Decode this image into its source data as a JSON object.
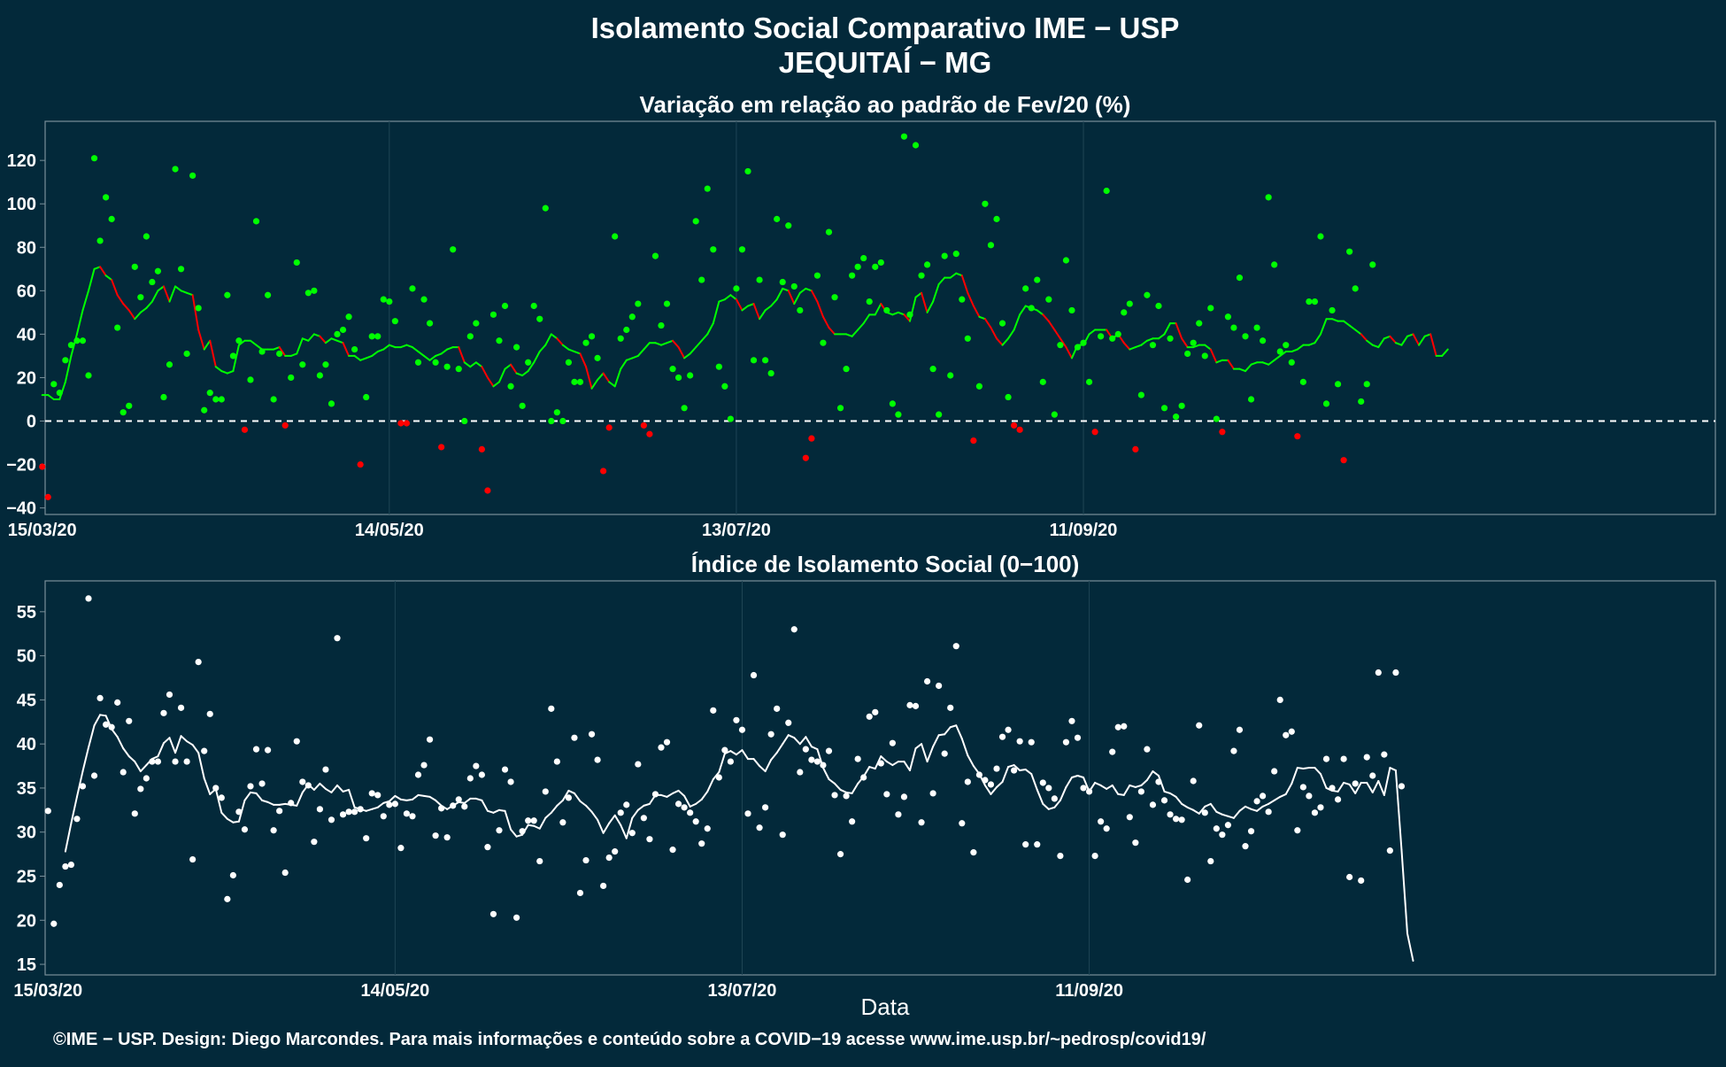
{
  "header": {
    "title": "Isolamento Social Comparativo IME − USP",
    "subtitle": "JEQUITAÍ − MG"
  },
  "footer": {
    "credit": "©IME − USP. Design: Diego Marcondes. Para mais informações e conteúdo sobre a COVID−19 acesse www.ime.usp.br/~pedrosp/covid19/"
  },
  "colors": {
    "background": "#03293a",
    "positive": "#00ff00",
    "negative": "#ff0000",
    "index": "#ffffff",
    "panel_border": "#7a8f99",
    "grid": "#1f4555"
  },
  "chart_data": [
    {
      "type": "scatter",
      "title": "Variação em relação ao padrão de Fev/20 (%)",
      "xlabel": "",
      "ylabel": "",
      "x_start": "15/03/20",
      "x_ticks": [
        "15/03/20",
        "14/05/20",
        "13/07/20",
        "11/09/20"
      ],
      "y_ticks": [
        "−40",
        "−20",
        "0",
        "20",
        "40",
        "60",
        "80",
        "100",
        "120"
      ],
      "ylim": [
        -43,
        138
      ],
      "reference_line": 0,
      "grid": true,
      "series": [
        {
          "values": [
            -21,
            -35,
            17,
            13,
            28,
            35,
            37,
            37,
            21,
            121,
            83,
            103,
            93,
            43,
            4,
            7,
            71,
            57,
            85,
            64,
            69,
            11,
            26,
            116,
            70,
            31,
            113,
            52,
            5,
            13,
            10,
            10,
            58,
            30,
            37,
            -4,
            19,
            92,
            32,
            58,
            10,
            31,
            -2,
            20,
            73,
            26,
            59,
            60,
            21,
            26,
            8,
            40,
            42,
            48,
            33,
            -20,
            11,
            39,
            39,
            56,
            55,
            46,
            -1,
            -1,
            61,
            27,
            56,
            45,
            27,
            -12,
            25,
            79,
            24,
            0,
            39,
            45,
            -13,
            -32,
            49,
            37,
            53,
            16,
            34,
            7,
            27,
            53,
            47,
            98,
            0,
            4,
            0,
            27,
            18,
            18,
            36,
            39,
            29,
            -23,
            -3,
            85,
            38,
            42,
            48,
            54,
            -2,
            -6,
            76,
            44,
            54,
            24,
            20,
            6,
            21,
            92,
            65,
            107,
            79,
            25,
            16,
            1,
            61,
            79,
            115,
            28,
            65,
            28,
            22,
            93,
            64,
            90,
            62,
            51,
            -17,
            -8,
            67,
            36,
            87,
            57,
            6,
            24,
            67,
            71,
            75,
            55,
            71,
            73,
            51,
            8,
            3,
            131,
            49,
            127,
            67,
            72,
            24,
            3,
            76,
            21,
            77,
            56,
            38,
            -9,
            16,
            100,
            81,
            93,
            45,
            11,
            -2,
            -4,
            61,
            52,
            65,
            18,
            56,
            3,
            35,
            74,
            51,
            34,
            36,
            18,
            -5,
            39,
            106,
            38,
            40,
            50,
            54,
            -13,
            12,
            58,
            35,
            53,
            6,
            38,
            2,
            7,
            31,
            36,
            45,
            30,
            52,
            1,
            -5,
            48,
            43,
            66,
            39,
            10,
            43,
            37,
            103,
            72,
            32,
            35,
            27,
            -7,
            18,
            55,
            55,
            85,
            8,
            51,
            17,
            -18,
            78,
            61,
            9,
            17,
            72
          ]
        },
        {
          "name": "",
          "values": [
            12,
            12,
            10,
            10,
            18,
            30,
            40,
            51,
            60,
            70,
            71,
            67,
            65,
            58,
            54,
            51,
            47,
            50,
            52,
            55,
            60,
            62,
            55,
            62,
            60,
            59,
            58,
            42,
            33,
            37,
            25,
            23,
            22,
            23,
            35,
            37,
            37,
            35,
            33,
            33,
            33,
            34,
            30,
            30,
            31,
            38,
            37,
            40,
            39,
            36,
            38,
            37,
            36,
            30,
            30,
            28,
            29,
            30,
            32,
            33,
            35,
            34,
            34,
            35,
            34,
            32,
            30,
            28,
            30,
            31,
            33,
            34,
            34,
            27,
            25,
            27,
            25,
            20,
            16,
            18,
            24,
            26,
            22,
            21,
            23,
            27,
            32,
            35,
            40,
            38,
            35,
            33,
            32,
            31,
            25,
            15,
            19,
            22,
            18,
            16,
            24,
            28,
            29,
            30,
            33,
            36,
            36,
            35,
            36,
            37,
            34,
            29,
            31,
            34,
            37,
            40,
            45,
            55,
            56,
            58,
            56,
            51,
            53,
            54,
            47,
            51,
            53,
            56,
            61,
            60,
            54,
            59,
            61,
            60,
            55,
            48,
            43,
            40,
            40,
            40,
            39,
            42,
            45,
            49,
            49,
            54,
            50,
            49,
            50,
            49,
            46,
            57,
            59,
            50,
            55,
            63,
            66,
            66,
            68,
            67,
            59,
            53,
            48,
            47,
            43,
            38,
            35,
            38,
            42,
            49,
            53,
            52,
            51,
            49,
            46,
            42,
            38,
            34,
            29,
            35,
            35,
            40,
            42,
            42,
            42,
            38,
            40,
            36,
            33,
            34,
            35,
            37,
            38,
            38,
            40,
            45,
            45,
            38,
            34,
            34,
            35,
            35,
            33,
            27,
            28,
            28,
            24,
            24,
            23,
            26,
            27,
            27,
            26,
            28,
            30,
            32,
            32,
            33,
            35,
            35,
            36,
            40,
            47,
            47,
            46,
            46,
            44,
            42,
            40,
            37,
            35,
            34,
            38,
            39,
            36,
            35,
            39,
            40,
            35,
            39,
            40,
            30,
            30,
            33
          ]
        }
      ]
    },
    {
      "type": "scatter",
      "title": "Índice de Isolamento Social (0−100)",
      "xlabel": "Data",
      "ylabel": "",
      "x_start": "15/03/20",
      "x_ticks": [
        "15/03/20",
        "14/05/20",
        "13/07/20",
        "11/09/20"
      ],
      "y_ticks": [
        "15",
        "20",
        "25",
        "30",
        "35",
        "40",
        "45",
        "50",
        "55"
      ],
      "ylim": [
        13.8,
        58.5
      ],
      "grid": true,
      "series": [
        {
          "values": [
            32.4,
            19.6,
            24.0,
            26.1,
            26.3,
            31.5,
            35.2,
            56.5,
            36.4,
            45.2,
            42.2,
            41.9,
            44.7,
            36.8,
            42.6,
            32.1,
            34.9,
            36.1,
            38.0,
            38.0,
            43.5,
            45.6,
            38.0,
            44.1,
            38.0,
            26.9,
            49.3,
            39.2,
            43.4,
            35.0,
            33.9,
            22.4,
            25.1,
            32.3,
            30.3,
            35.2,
            39.4,
            35.5,
            39.3,
            30.2,
            32.4,
            25.4,
            33.3,
            40.3,
            35.7,
            35.3,
            28.9,
            32.6,
            37.1,
            31.4,
            52.0,
            32.0,
            32.3,
            32.3,
            32.6,
            29.3,
            34.4,
            34.2,
            31.8,
            33.1,
            33.2,
            28.2,
            32.1,
            31.8,
            36.5,
            37.6,
            40.5,
            29.6,
            32.7,
            29.4,
            33.0,
            33.7,
            32.9,
            36.1,
            37.5,
            36.5,
            28.3,
            20.7,
            30.2,
            37.1,
            35.7,
            20.3,
            30.1,
            31.3,
            31.3,
            26.7,
            34.6,
            44.0,
            38.0,
            31.1,
            33.9,
            40.7,
            23.1,
            26.8,
            41.1,
            38.2,
            23.9,
            27.1,
            27.8,
            32.2,
            33.1,
            29.9,
            37.7,
            31.6,
            29.2,
            34.3,
            39.6,
            40.2,
            28.0,
            33.2,
            32.8,
            32.2,
            31.2,
            28.7,
            30.4,
            43.8,
            36.2,
            39.3,
            38.0,
            42.7,
            41.6,
            32.1,
            47.8,
            30.5,
            32.8,
            41.1,
            44.0,
            29.7,
            42.4,
            53.0,
            36.8,
            39.4,
            38.2,
            38.0,
            37.6,
            39.2,
            34.2,
            27.5,
            34.1,
            31.2,
            38.3,
            36.2,
            43.1,
            43.6,
            37.8,
            34.3,
            40.1,
            32.0,
            34.0,
            44.4,
            44.3,
            31.1,
            47.1,
            34.4,
            46.6,
            38.9,
            44.1,
            51.1,
            31.0,
            35.7,
            27.7,
            36.5,
            35.9,
            35.4,
            37.2,
            40.8,
            41.6,
            37.0,
            40.3,
            28.6,
            40.2,
            28.6,
            35.6,
            35.0,
            33.8,
            27.3,
            40.2,
            42.6,
            40.7,
            35.0,
            34.6,
            27.3,
            31.2,
            30.4,
            39.1,
            41.9,
            42.0,
            31.7,
            28.8,
            34.6,
            39.4,
            33.1,
            35.7,
            33.6,
            32.0,
            31.5,
            31.4,
            24.6,
            35.8,
            42.1,
            32.2,
            26.7,
            30.4,
            29.7,
            30.8,
            39.2,
            41.6,
            28.4,
            30.1,
            33.5,
            34.1,
            32.3,
            36.9,
            45.0,
            41.0,
            41.4,
            30.2,
            35.1,
            34.1,
            32.2,
            32.8,
            38.3,
            35.0,
            33.7,
            38.3,
            24.9,
            35.5,
            24.5,
            38.5,
            36.4,
            48.1,
            38.8,
            27.9,
            48.1,
            35.2
          ]
        },
        {
          "name": "",
          "values": [
            null,
            null,
            null,
            27.8,
            31.0,
            34.0,
            36.9,
            39.6,
            42.1,
            43.3,
            43.2,
            41.7,
            40.8,
            39.5,
            38.6,
            38.0,
            36.9,
            37.6,
            38.3,
            38.6,
            40.1,
            40.7,
            39.0,
            40.9,
            40.3,
            39.9,
            39.0,
            36.1,
            34.3,
            34.9,
            32.2,
            31.5,
            31.1,
            31.2,
            33.6,
            34.5,
            34.4,
            33.6,
            33.4,
            33.1,
            33.1,
            33.2,
            33.1,
            33.0,
            34.5,
            35.4,
            34.8,
            35.5,
            34.9,
            34.5,
            35.3,
            34.6,
            34.8,
            32.8,
            32.6,
            32.4,
            32.6,
            32.8,
            33.3,
            33.5,
            34.1,
            33.7,
            33.6,
            33.7,
            34.2,
            34.1,
            34.0,
            33.6,
            33.0,
            32.6,
            33.0,
            33.4,
            33.3,
            33.8,
            33.8,
            33.6,
            32.4,
            32.2,
            32.5,
            32.4,
            30.3,
            29.5,
            29.7,
            30.8,
            30.7,
            30.4,
            31.6,
            32.2,
            33.0,
            33.6,
            34.7,
            34.4,
            33.5,
            33.0,
            32.3,
            31.4,
            29.9,
            31.0,
            31.9,
            30.8,
            29.3,
            31.6,
            32.5,
            33.0,
            33.2,
            34.2,
            34.2,
            34.0,
            34.4,
            34.7,
            34.1,
            32.9,
            33.2,
            33.7,
            34.6,
            36.0,
            36.8,
            38.9,
            39.2,
            38.8,
            39.3,
            38.3,
            38.3,
            37.5,
            36.9,
            38.2,
            39.0,
            40.0,
            41.0,
            40.7,
            40.0,
            40.8,
            39.7,
            39.4,
            37.3,
            36.0,
            35.5,
            34.8,
            34.5,
            34.4,
            35.5,
            36.3,
            37.4,
            37.2,
            38.6,
            38.0,
            37.6,
            38.0,
            38.0,
            37.0,
            39.5,
            40.0,
            38.0,
            39.7,
            41.0,
            41.1,
            41.9,
            42.1,
            40.6,
            38.7,
            37.5,
            36.6,
            35.3,
            34.3,
            35.1,
            35.7,
            37.4,
            37.6,
            37.0,
            37.1,
            36.6,
            34.8,
            33.2,
            32.6,
            32.8,
            33.6,
            35.1,
            36.2,
            36.4,
            36.2,
            34.6,
            35.6,
            35.3,
            34.9,
            35.3,
            34.3,
            34.2,
            35.3,
            35.1,
            35.3,
            35.9,
            36.9,
            36.4,
            34.6,
            34.4,
            34.0,
            33.2,
            32.8,
            32.5,
            32.1,
            32.9,
            33.2,
            32.3,
            32.0,
            31.8,
            31.6,
            32.4,
            32.9,
            32.6,
            32.4,
            32.9,
            33.2,
            33.6,
            34.0,
            34.3,
            35.5,
            37.3,
            37.2,
            37.3,
            37.3,
            36.6,
            35.0,
            34.7,
            34.6,
            35.6,
            35.4,
            34.4,
            35.6,
            35.6,
            34.5,
            35.8,
            34.2,
            37.3,
            37.0,
            28.0,
            18.5,
            15.4
          ]
        }
      ]
    }
  ]
}
